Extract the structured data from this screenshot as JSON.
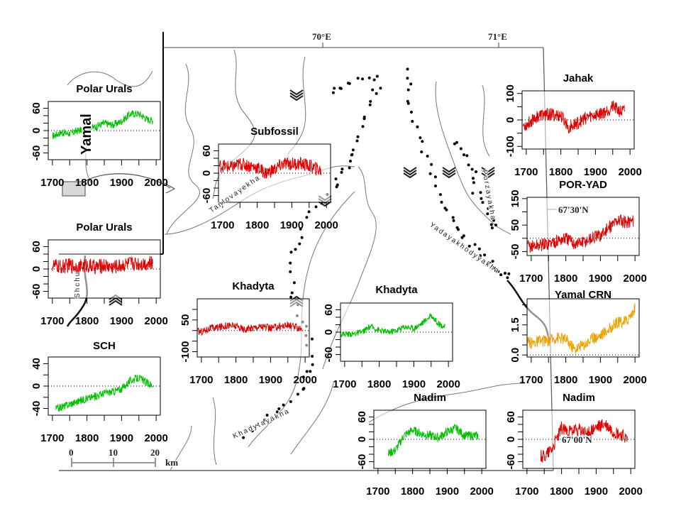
{
  "map": {
    "longitude_labels": [
      "70°E",
      "71°E"
    ],
    "latitude_labels": [
      "67'30'N",
      "67'00'N"
    ],
    "scale_bar": {
      "labels": [
        "0",
        "10",
        "20"
      ],
      "unit": "km"
    },
    "river_labels": [
      "Tanlovayekha",
      "Porzayakha",
      "Yadayakhodyyakha",
      "Khadytayakha",
      "Shchu"
    ],
    "inset_label": "Yamal"
  },
  "chart_data": [
    {
      "id": "polar-urals-green",
      "type": "line",
      "title": "Polar Urals",
      "color": "#00c000",
      "xlim": [
        1688,
        2012
      ],
      "ylim": [
        -78,
        78
      ],
      "yticks": [
        -60,
        -40,
        -20,
        0,
        20,
        40,
        60
      ],
      "ytick_labels": [
        "-60",
        "0",
        "60"
      ],
      "xticks": [
        "1700",
        "1800",
        "1900",
        "2000"
      ],
      "start": 1700,
      "end": 1990,
      "trend_step_years": 25,
      "trend": [
        -15,
        -5,
        -8,
        0,
        5,
        10,
        20,
        15,
        25,
        45,
        45,
        30,
        25
      ],
      "noise": 10
    },
    {
      "id": "polar-urals-red",
      "type": "line",
      "title": "Polar Urals",
      "color": "#e00000",
      "xlim": [
        1688,
        2012
      ],
      "ylim": [
        -78,
        78
      ],
      "yticks": [
        -60,
        -40,
        -20,
        0,
        20,
        40,
        60
      ],
      "ytick_labels": [
        "-60",
        "0",
        "60"
      ],
      "xticks": [
        "1700",
        "1800",
        "1900",
        "2000"
      ],
      "start": 1700,
      "end": 1990,
      "trend_step_years": 25,
      "trend": [
        10,
        5,
        10,
        5,
        10,
        5,
        10,
        5,
        10,
        15,
        15,
        15,
        15
      ],
      "noise": 20
    },
    {
      "id": "sch",
      "type": "line",
      "title": "SCH",
      "color": "#00c000",
      "xlim": [
        1688,
        2012
      ],
      "ylim": [
        -52,
        52
      ],
      "yticks": [
        -40,
        -20,
        0,
        20,
        40
      ],
      "ytick_labels": [
        "-40",
        "0",
        "40"
      ],
      "xticks": [
        "1700",
        "1800",
        "1900",
        "2000"
      ],
      "start": 1710,
      "end": 1990,
      "trend_step_years": 25,
      "trend": [
        -42,
        -38,
        -32,
        -27,
        -22,
        -18,
        -12,
        -10,
        -5,
        10,
        15,
        5,
        0
      ],
      "noise": 7
    },
    {
      "id": "subfossil",
      "type": "line",
      "title": "Subfossil",
      "color": "#e00000",
      "xlim": [
        1688,
        2012
      ],
      "ylim": [
        -78,
        78
      ],
      "yticks": [
        -60,
        -40,
        -20,
        0,
        20,
        40,
        60
      ],
      "ytick_labels": [
        "-60",
        "0",
        "60"
      ],
      "xticks": [
        "1700",
        "1800",
        "1900",
        "2000"
      ],
      "start": 1690,
      "end": 1985,
      "trend_step_years": 25,
      "trend": [
        20,
        15,
        25,
        20,
        15,
        0,
        10,
        25,
        25,
        25,
        20,
        10,
        0
      ],
      "noise": 18
    },
    {
      "id": "khadyta-red",
      "type": "line",
      "title": "Khadyta",
      "color": "#e00000",
      "xlim": [
        1688,
        2012
      ],
      "ylim": [
        -125,
        150
      ],
      "yticks": [
        -100,
        -50,
        0,
        50,
        100
      ],
      "ytick_labels": [
        "-100",
        "50"
      ],
      "xticks": [
        "1700",
        "1800",
        "1900",
        "2000"
      ],
      "start": 1690,
      "end": 1990,
      "trend_step_years": 25,
      "trend": [
        -5,
        10,
        15,
        25,
        20,
        5,
        15,
        20,
        10,
        20,
        25,
        15,
        10
      ],
      "noise": 18
    },
    {
      "id": "khadyta-green",
      "type": "line",
      "title": "Khadyta",
      "color": "#00c000",
      "xlim": [
        1688,
        2012
      ],
      "ylim": [
        -78,
        78
      ],
      "yticks": [
        -60,
        -40,
        -20,
        0,
        20,
        40,
        60
      ],
      "ytick_labels": [
        "-60",
        "0",
        "60"
      ],
      "xticks": [
        "1700",
        "1800",
        "1900",
        "2000"
      ],
      "start": 1690,
      "end": 1990,
      "trend_step_years": 25,
      "trend": [
        -5,
        -5,
        0,
        15,
        5,
        0,
        5,
        15,
        10,
        25,
        45,
        20,
        10
      ],
      "noise": 8
    },
    {
      "id": "nadim-green",
      "type": "line",
      "title": "Nadim",
      "color": "#00c000",
      "xlim": [
        1688,
        2012
      ],
      "ylim": [
        -78,
        78
      ],
      "yticks": [
        -60,
        -40,
        -20,
        0,
        20,
        40,
        60
      ],
      "ytick_labels": [
        "-60",
        "0",
        "60"
      ],
      "xticks": [
        "1700",
        "1800",
        "1900",
        "2000"
      ],
      "start": 1730,
      "end": 1990,
      "trend_step_years": 25,
      "trend": [
        -40,
        -40,
        -30,
        10,
        25,
        15,
        10,
        5,
        20,
        30,
        10,
        10,
        8
      ],
      "noise": 12
    },
    {
      "id": "jahak",
      "type": "line",
      "title": "Jahak",
      "color": "#e00000",
      "xlim": [
        1688,
        2012
      ],
      "ylim": [
        -110,
        110
      ],
      "yticks": [
        -100,
        -50,
        0,
        50,
        100
      ],
      "ytick_labels": [
        "-100",
        "0",
        "100"
      ],
      "xticks": [
        "1700",
        "1800",
        "1900",
        "2000"
      ],
      "start": 1690,
      "end": 1985,
      "trend_step_years": 25,
      "trend": [
        -20,
        10,
        20,
        20,
        15,
        -30,
        -10,
        10,
        20,
        30,
        50,
        30,
        40
      ],
      "noise": 25
    },
    {
      "id": "por-yad",
      "type": "line",
      "title": "POR-YAD",
      "color": "#e00000",
      "xlim": [
        1688,
        2012
      ],
      "ylim": [
        -65,
        155
      ],
      "yticks": [
        -50,
        0,
        50,
        100,
        150
      ],
      "ytick_labels": [
        "-50",
        "50",
        "150"
      ],
      "xticks": [
        "1700",
        "1800",
        "1900",
        "2000"
      ],
      "start": 1690,
      "end": 1995,
      "trend_step_years": 25,
      "trend": [
        -30,
        -25,
        -20,
        -10,
        0,
        -20,
        -15,
        0,
        10,
        40,
        70,
        60,
        70
      ],
      "noise": 25
    },
    {
      "id": "yamal-crn",
      "type": "line",
      "title": "Yamal CRN",
      "color": "#f0a000",
      "xlim": [
        1688,
        2012
      ],
      "ylim": [
        -0.1,
        2.8
      ],
      "yticks": [
        0,
        0.5,
        1,
        1.5,
        2,
        2.5
      ],
      "ytick_labels": [
        "0.0",
        "1.5"
      ],
      "xticks": [
        "1700",
        "1800",
        "1900",
        "2000"
      ],
      "start": 1690,
      "end": 2000,
      "trend_step_years": 25,
      "trend": [
        0.6,
        0.7,
        0.7,
        0.9,
        0.8,
        0.3,
        0.5,
        0.8,
        1.0,
        1.3,
        1.6,
        1.7,
        2.3
      ],
      "noise": 0.3
    },
    {
      "id": "nadim-red",
      "type": "line",
      "title": "Nadim",
      "color": "#e00000",
      "xlim": [
        1688,
        2012
      ],
      "ylim": [
        -78,
        78
      ],
      "yticks": [
        -60,
        -40,
        -20,
        0,
        20,
        40,
        60
      ],
      "ytick_labels": [
        "-60",
        "0",
        "60"
      ],
      "xticks": [
        "1700",
        "1800",
        "1900",
        "2000"
      ],
      "start": 1740,
      "end": 1990,
      "trend_step_years": 25,
      "trend": [
        -45,
        -45,
        -45,
        -20,
        30,
        20,
        25,
        15,
        30,
        40,
        20,
        10,
        -10
      ],
      "noise": 18
    }
  ]
}
